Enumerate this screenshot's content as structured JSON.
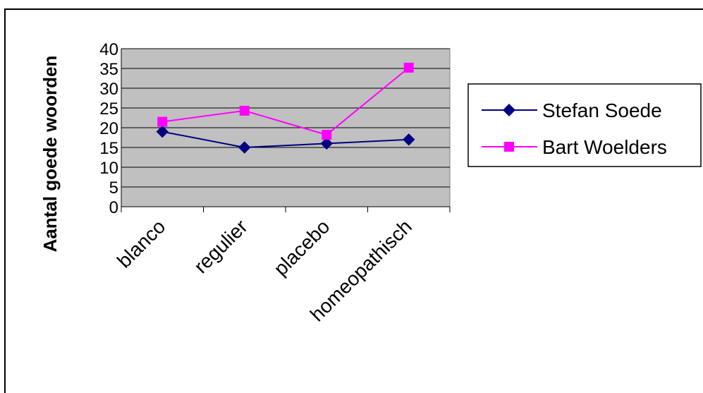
{
  "colors": {
    "plot_background": "#c0c0c0",
    "gridline": "#000000",
    "series_1": "#000080",
    "series_2": "#ff00ff"
  },
  "chart_data": {
    "type": "line",
    "title": "",
    "xlabel": "",
    "ylabel": "Aantal goede woorden",
    "categories": [
      "blanco",
      "regulier",
      "placebo",
      "homeopathisch"
    ],
    "ylim": [
      0,
      40
    ],
    "yticks": [
      "0",
      "5",
      "10",
      "15",
      "20",
      "25",
      "30",
      "35",
      "40"
    ],
    "grid": true,
    "legend_position": "right",
    "series": [
      {
        "name": "Stefan Soede",
        "values": [
          19,
          15,
          16,
          17
        ],
        "color": "#000080",
        "marker": "diamond-icon"
      },
      {
        "name": "Bart Woelders",
        "values": [
          21.5,
          24.3,
          18.2,
          35.2
        ],
        "color": "#ff00ff",
        "marker": "square-icon"
      }
    ]
  }
}
